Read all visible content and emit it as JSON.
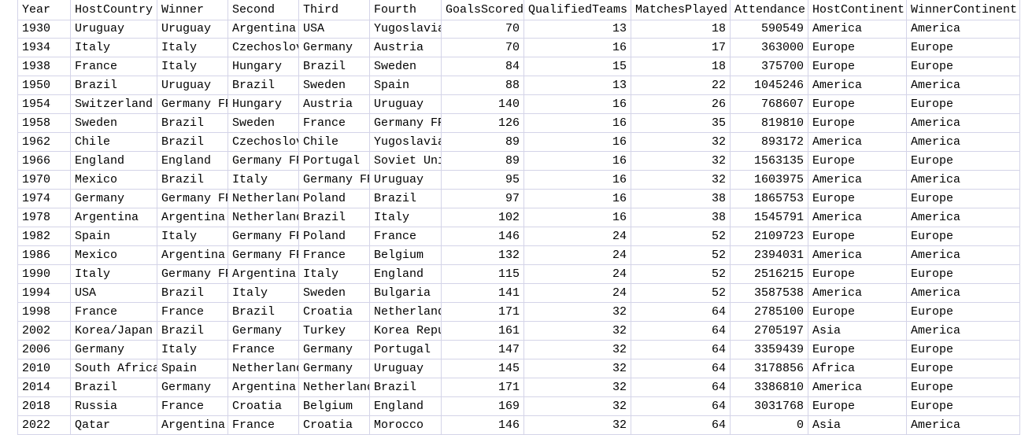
{
  "table": {
    "header": [
      "Year",
      "HostCountry",
      "Winner",
      "Second",
      "Third",
      "Fourth",
      "GoalsScored",
      "QualifiedTeams",
      "MatchesPlayed",
      "Attendance",
      "HostContinent",
      "WinnerContinent"
    ],
    "rows": [
      [
        1930,
        "Uruguay",
        "Uruguay",
        "Argentina",
        "USA",
        "Yugoslavia",
        70,
        13,
        18,
        590549,
        "America",
        "America"
      ],
      [
        1934,
        "Italy",
        "Italy",
        "Czechoslovakia",
        "Germany",
        "Austria",
        70,
        16,
        17,
        363000,
        "Europe",
        "Europe"
      ],
      [
        1938,
        "France",
        "Italy",
        "Hungary",
        "Brazil",
        "Sweden",
        84,
        15,
        18,
        375700,
        "Europe",
        "Europe"
      ],
      [
        1950,
        "Brazil",
        "Uruguay",
        "Brazil",
        "Sweden",
        "Spain",
        88,
        13,
        22,
        1045246,
        "America",
        "America"
      ],
      [
        1954,
        "Switzerland",
        "Germany FR",
        "Hungary",
        "Austria",
        "Uruguay",
        140,
        16,
        26,
        768607,
        "Europe",
        "Europe"
      ],
      [
        1958,
        "Sweden",
        "Brazil",
        "Sweden",
        "France",
        "Germany FR",
        126,
        16,
        35,
        819810,
        "Europe",
        "America"
      ],
      [
        1962,
        "Chile",
        "Brazil",
        "Czechoslovakia",
        "Chile",
        "Yugoslavia",
        89,
        16,
        32,
        893172,
        "America",
        "America"
      ],
      [
        1966,
        "England",
        "England",
        "Germany FR",
        "Portugal",
        "Soviet Union",
        89,
        16,
        32,
        1563135,
        "Europe",
        "Europe"
      ],
      [
        1970,
        "Mexico",
        "Brazil",
        "Italy",
        "Germany FR",
        "Uruguay",
        95,
        16,
        32,
        1603975,
        "America",
        "America"
      ],
      [
        1974,
        "Germany",
        "Germany FR",
        "Netherlands",
        "Poland",
        "Brazil",
        97,
        16,
        38,
        1865753,
        "Europe",
        "Europe"
      ],
      [
        1978,
        "Argentina",
        "Argentina",
        "Netherlands",
        "Brazil",
        "Italy",
        102,
        16,
        38,
        1545791,
        "America",
        "America"
      ],
      [
        1982,
        "Spain",
        "Italy",
        "Germany FR",
        "Poland",
        "France",
        146,
        24,
        52,
        2109723,
        "Europe",
        "Europe"
      ],
      [
        1986,
        "Mexico",
        "Argentina",
        "Germany FR",
        "France",
        "Belgium",
        132,
        24,
        52,
        2394031,
        "America",
        "America"
      ],
      [
        1990,
        "Italy",
        "Germany FR",
        "Argentina",
        "Italy",
        "England",
        115,
        24,
        52,
        2516215,
        "Europe",
        "Europe"
      ],
      [
        1994,
        "USA",
        "Brazil",
        "Italy",
        "Sweden",
        "Bulgaria",
        141,
        24,
        52,
        3587538,
        "America",
        "America"
      ],
      [
        1998,
        "France",
        "France",
        "Brazil",
        "Croatia",
        "Netherlands",
        171,
        32,
        64,
        2785100,
        "Europe",
        "Europe"
      ],
      [
        2002,
        "Korea/Japan",
        "Brazil",
        "Germany",
        "Turkey",
        "Korea Republic",
        161,
        32,
        64,
        2705197,
        "Asia",
        "America"
      ],
      [
        2006,
        "Germany",
        "Italy",
        "France",
        "Germany",
        "Portugal",
        147,
        32,
        64,
        3359439,
        "Europe",
        "Europe"
      ],
      [
        2010,
        "South Africa",
        "Spain",
        "Netherlands",
        "Germany",
        "Uruguay",
        145,
        32,
        64,
        3178856,
        "Africa",
        "Europe"
      ],
      [
        2014,
        "Brazil",
        "Germany",
        "Argentina",
        "Netherlands",
        "Brazil",
        171,
        32,
        64,
        3386810,
        "America",
        "Europe"
      ],
      [
        2018,
        "Russia",
        "France",
        "Croatia",
        "Belgium",
        "England",
        169,
        32,
        64,
        3031768,
        "Europe",
        "Europe"
      ],
      [
        2022,
        "Qatar",
        "Argentina",
        "France",
        "Croatia",
        "Morocco",
        146,
        32,
        64,
        0,
        "Asia",
        "America"
      ]
    ]
  }
}
